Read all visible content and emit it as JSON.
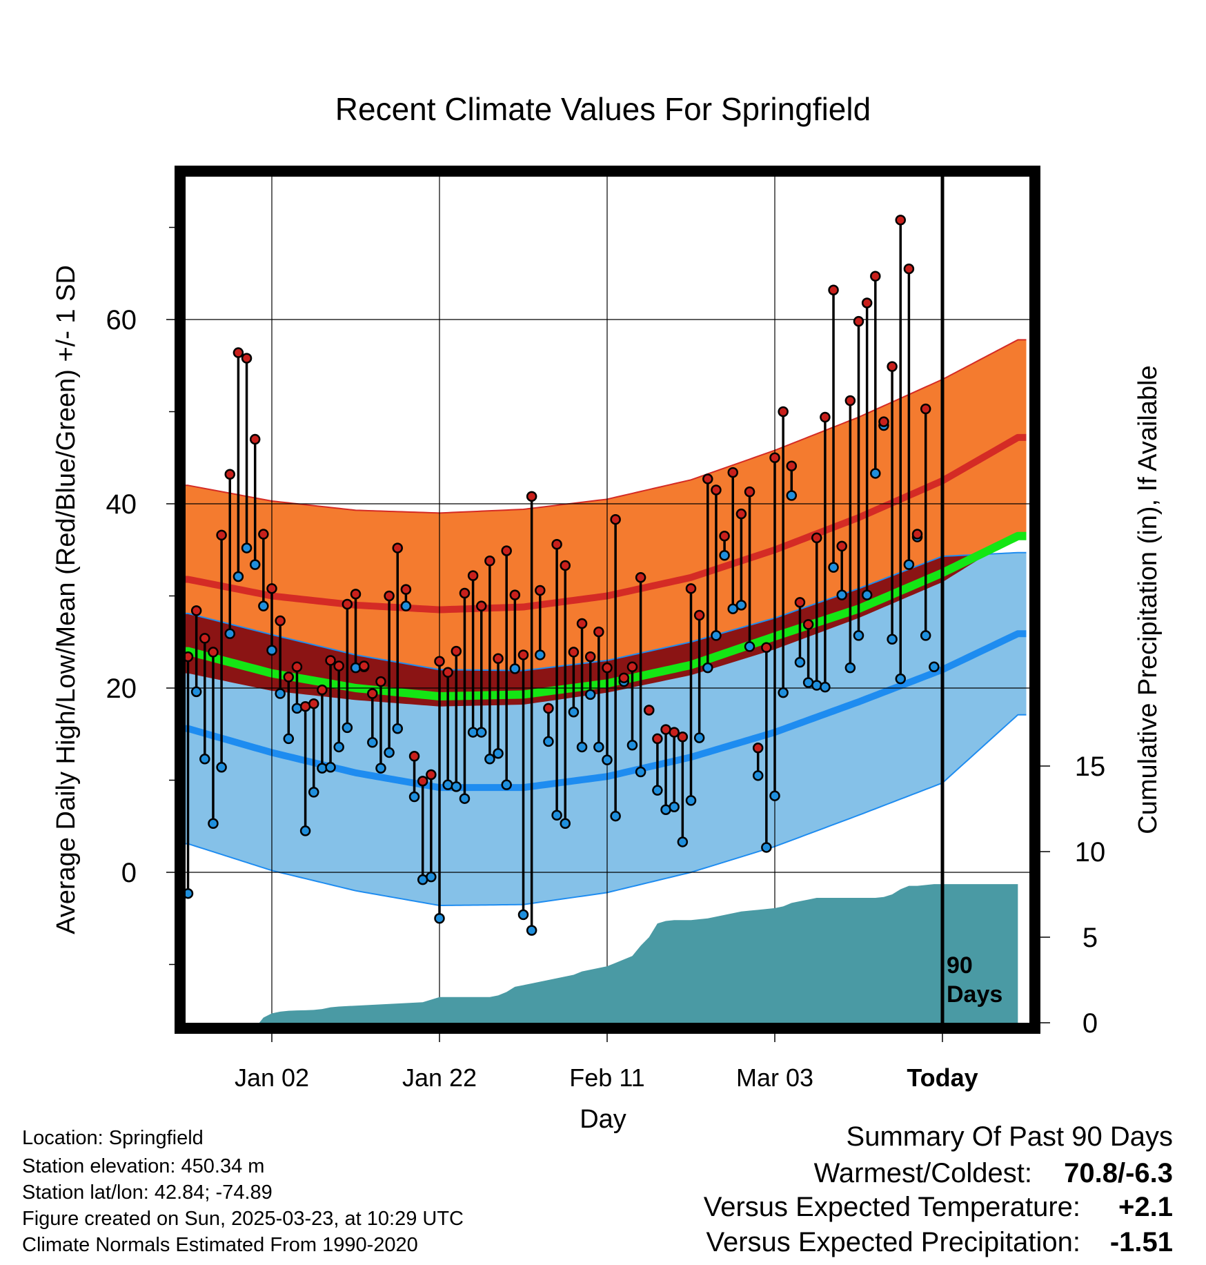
{
  "chart_data": {
    "type": "line",
    "title": "Recent Climate Values For Springfield",
    "xlabel": "Day",
    "ylabel": "Average Daily High/Low/Mean (Red/Blue/Green) +/- 1 SD",
    "y2label": "Cumulative Precipitation (in), If Available",
    "ylim": [
      -15.5,
      76
    ],
    "y2lim": [
      0,
      28.8
    ],
    "y_ticks": [
      "0",
      "20",
      "40",
      "60"
    ],
    "y2_ticks": [
      "0",
      "5",
      "10",
      "15"
    ],
    "x_ticks": [
      {
        "label": "Jan 02",
        "day": 10
      },
      {
        "label": "Jan 22",
        "day": 30
      },
      {
        "label": "Feb 11",
        "day": 50
      },
      {
        "label": "Mar 03",
        "day": 70
      },
      {
        "label": "Today",
        "day": 90
      }
    ],
    "marker_label": "90 Days",
    "grid": true,
    "normals": {
      "days": [
        0,
        10,
        20,
        30,
        40,
        50,
        60,
        70,
        80,
        90,
        99
      ],
      "high_mean": [
        31.8,
        30.0,
        29.0,
        28.5,
        28.8,
        30.0,
        32.0,
        35.0,
        38.5,
        42.5,
        47.2
      ],
      "high_sd": [
        10.2,
        10.3,
        10.3,
        10.5,
        10.6,
        10.5,
        10.6,
        10.8,
        10.9,
        11.0,
        10.6
      ],
      "low_mean": [
        15.6,
        13.0,
        10.8,
        9.2,
        9.2,
        10.4,
        12.5,
        15.2,
        18.5,
        22.0,
        25.9
      ],
      "low_sd": [
        12.5,
        12.8,
        12.8,
        12.8,
        12.7,
        12.6,
        12.5,
        12.4,
        12.3,
        12.3,
        8.8
      ],
      "mean": [
        24.0,
        21.6,
        20.0,
        19.1,
        19.3,
        20.5,
        22.5,
        25.6,
        28.6,
        32.5,
        36.5
      ]
    },
    "series": [
      {
        "name": "High",
        "color": "#c8201c",
        "values": [
          23.4,
          28.4,
          25.4,
          23.9,
          36.6,
          43.2,
          56.4,
          55.8,
          47.0,
          36.7,
          30.8,
          27.3,
          21.2,
          22.3,
          18.0,
          18.3,
          19.8,
          23.0,
          22.4,
          29.1,
          30.2,
          22.4,
          19.4,
          20.7,
          30.0,
          35.2,
          30.7,
          12.6,
          9.9,
          10.6,
          22.9,
          21.7,
          24.0,
          30.3,
          32.2,
          28.9,
          33.8,
          23.2,
          34.9,
          30.1,
          23.6,
          40.8,
          30.6,
          17.8,
          35.6,
          33.3,
          23.9,
          27.0,
          23.4,
          26.1,
          22.2,
          38.3,
          21.1,
          22.3,
          32.0,
          17.6,
          14.5,
          15.5,
          15.2,
          14.7,
          30.8,
          27.9,
          42.7,
          41.5,
          36.5,
          43.4,
          38.9,
          41.3,
          13.5,
          24.4,
          45.0,
          50.0,
          44.1,
          29.3,
          26.9,
          36.3,
          49.4,
          63.2,
          35.4,
          51.2,
          59.8,
          61.8,
          64.7,
          48.9,
          54.9,
          70.8,
          65.5,
          36.7,
          50.3
        ],
        "label": "High"
      },
      {
        "name": "Low",
        "color": "#1f8fdd",
        "values": [
          -2.3,
          19.6,
          12.3,
          5.3,
          11.4,
          25.9,
          32.1,
          35.2,
          33.4,
          28.9,
          24.1,
          19.4,
          14.5,
          17.8,
          4.5,
          8.7,
          11.3,
          11.4,
          13.6,
          15.7,
          22.2,
          22.3,
          14.1,
          11.3,
          13.0,
          15.6,
          28.9,
          8.2,
          -0.8,
          -0.5,
          -5.0,
          9.5,
          9.3,
          8.0,
          15.2,
          15.2,
          12.3,
          12.9,
          9.5,
          22.1,
          -4.6,
          -6.3,
          23.6,
          14.2,
          6.2,
          5.3,
          17.4,
          13.6,
          19.3,
          13.6,
          12.2,
          6.1,
          20.7,
          13.8,
          10.9,
          17.6,
          8.9,
          6.8,
          7.1,
          3.3,
          7.8,
          14.6,
          22.2,
          25.7,
          34.4,
          28.6,
          29.0,
          24.5,
          10.5,
          2.7,
          8.3,
          19.5,
          40.9,
          22.8,
          20.6,
          20.3,
          20.1,
          33.1,
          30.1,
          22.2,
          25.7,
          30.1,
          43.3,
          48.5,
          25.3,
          21.0,
          33.4,
          36.4,
          25.7,
          22.3
        ],
        "label": "Low"
      }
    ],
    "precip": {
      "days": [
        0,
        8.5,
        9,
        10,
        11,
        12,
        13,
        14,
        15,
        16,
        17,
        18,
        20,
        22,
        24,
        26,
        28,
        30,
        32,
        34,
        36,
        37,
        38,
        39,
        40,
        41,
        42,
        43,
        44,
        45,
        46,
        47,
        48,
        49,
        50,
        51,
        52,
        53,
        54,
        55,
        56,
        57,
        58,
        60,
        62,
        63,
        64,
        65,
        66,
        67,
        68,
        69,
        70,
        71,
        72,
        73,
        74,
        75,
        76,
        77,
        78,
        80,
        82,
        83,
        84,
        85,
        86,
        87,
        88,
        89,
        90,
        91,
        92,
        93,
        94,
        95,
        96,
        97,
        98,
        99
      ],
      "values": [
        0,
        0,
        0.3,
        0.55,
        0.65,
        0.7,
        0.72,
        0.73,
        0.75,
        0.8,
        0.9,
        0.95,
        1.0,
        1.05,
        1.1,
        1.15,
        1.2,
        1.5,
        1.5,
        1.5,
        1.5,
        1.6,
        1.8,
        2.1,
        2.2,
        2.3,
        2.4,
        2.5,
        2.6,
        2.7,
        2.8,
        3.0,
        3.1,
        3.2,
        3.3,
        3.5,
        3.7,
        3.9,
        4.5,
        5.0,
        5.8,
        5.95,
        6.0,
        6.0,
        6.1,
        6.2,
        6.3,
        6.4,
        6.5,
        6.55,
        6.6,
        6.65,
        6.7,
        6.8,
        7.0,
        7.1,
        7.2,
        7.3,
        7.3,
        7.3,
        7.3,
        7.3,
        7.3,
        7.35,
        7.5,
        7.8,
        8.0,
        8.0,
        8.05,
        8.1,
        8.1,
        8.1,
        8.1,
        8.1,
        8.1,
        8.1,
        8.1,
        8.1,
        8.1,
        8.1
      ],
      "color": "#4a9aa4"
    },
    "colors": {
      "high_band": "#f47b2f",
      "high_line": "#d42b25",
      "overlap_band": "#8b1414",
      "mean_line": "#14e614",
      "low_band": "#85c1e8",
      "low_line": "#1e8cf0",
      "marker_edge": "#000000"
    }
  },
  "summary": {
    "title": "Summary Of Past 90 Days",
    "warmest_coldest_label": "Warmest/Coldest:",
    "warmest_coldest_value": "70.8/-6.3",
    "temp_label": "Versus Expected Temperature:",
    "temp_value": "+2.1",
    "temp_color": "#d42b25",
    "precip_label": "Versus Expected Precipitation:",
    "precip_value": "-1.51",
    "precip_color": "#a0522d"
  },
  "station": {
    "location": "Location: Springfield",
    "elevation": "Station elevation: 450.34 m",
    "latlon": "Station lat/lon: 42.84; -74.89",
    "created": "Figure created on Sun, 2025-03-23, at 10:29 UTC",
    "normals": "Climate Normals Estimated From 1990-2020"
  }
}
